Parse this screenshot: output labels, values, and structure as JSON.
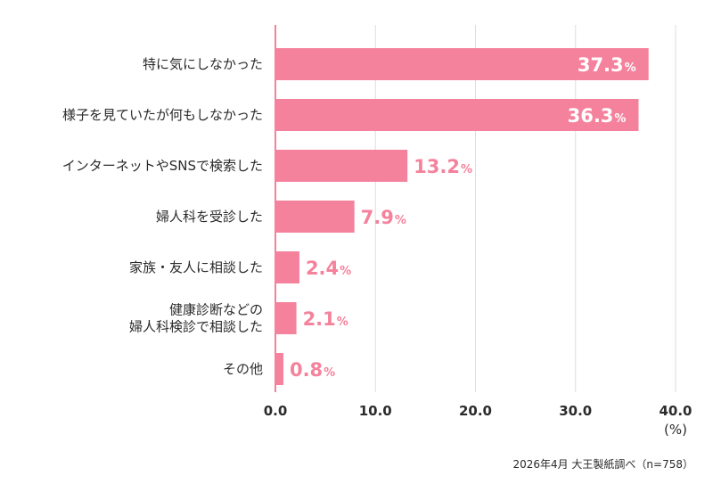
{
  "chart_data": {
    "type": "bar",
    "orientation": "horizontal",
    "categories": [
      "特に気にしなかった",
      "様子を見ていたが何もしなかった",
      "インターネットやSNSで検索した",
      "婦人科を受診した",
      "家族・友人に相談した",
      "健康診断などの\n婦人科検診で相談した",
      "その他"
    ],
    "values": [
      37.3,
      36.3,
      13.2,
      7.9,
      2.4,
      2.1,
      0.8
    ],
    "value_suffix": "%",
    "x_ticks": [
      "0.0",
      "10.0",
      "20.0",
      "30.0",
      "40.0"
    ],
    "xlim": [
      0,
      40
    ],
    "x_unit": "(%)",
    "grid": "vertical",
    "bar_color": "#f5829c",
    "label_inside_color": "#ffffff",
    "label_outside_color": "#f5829c"
  },
  "source": "2026年4月 大王製紙調べ（n=758）"
}
